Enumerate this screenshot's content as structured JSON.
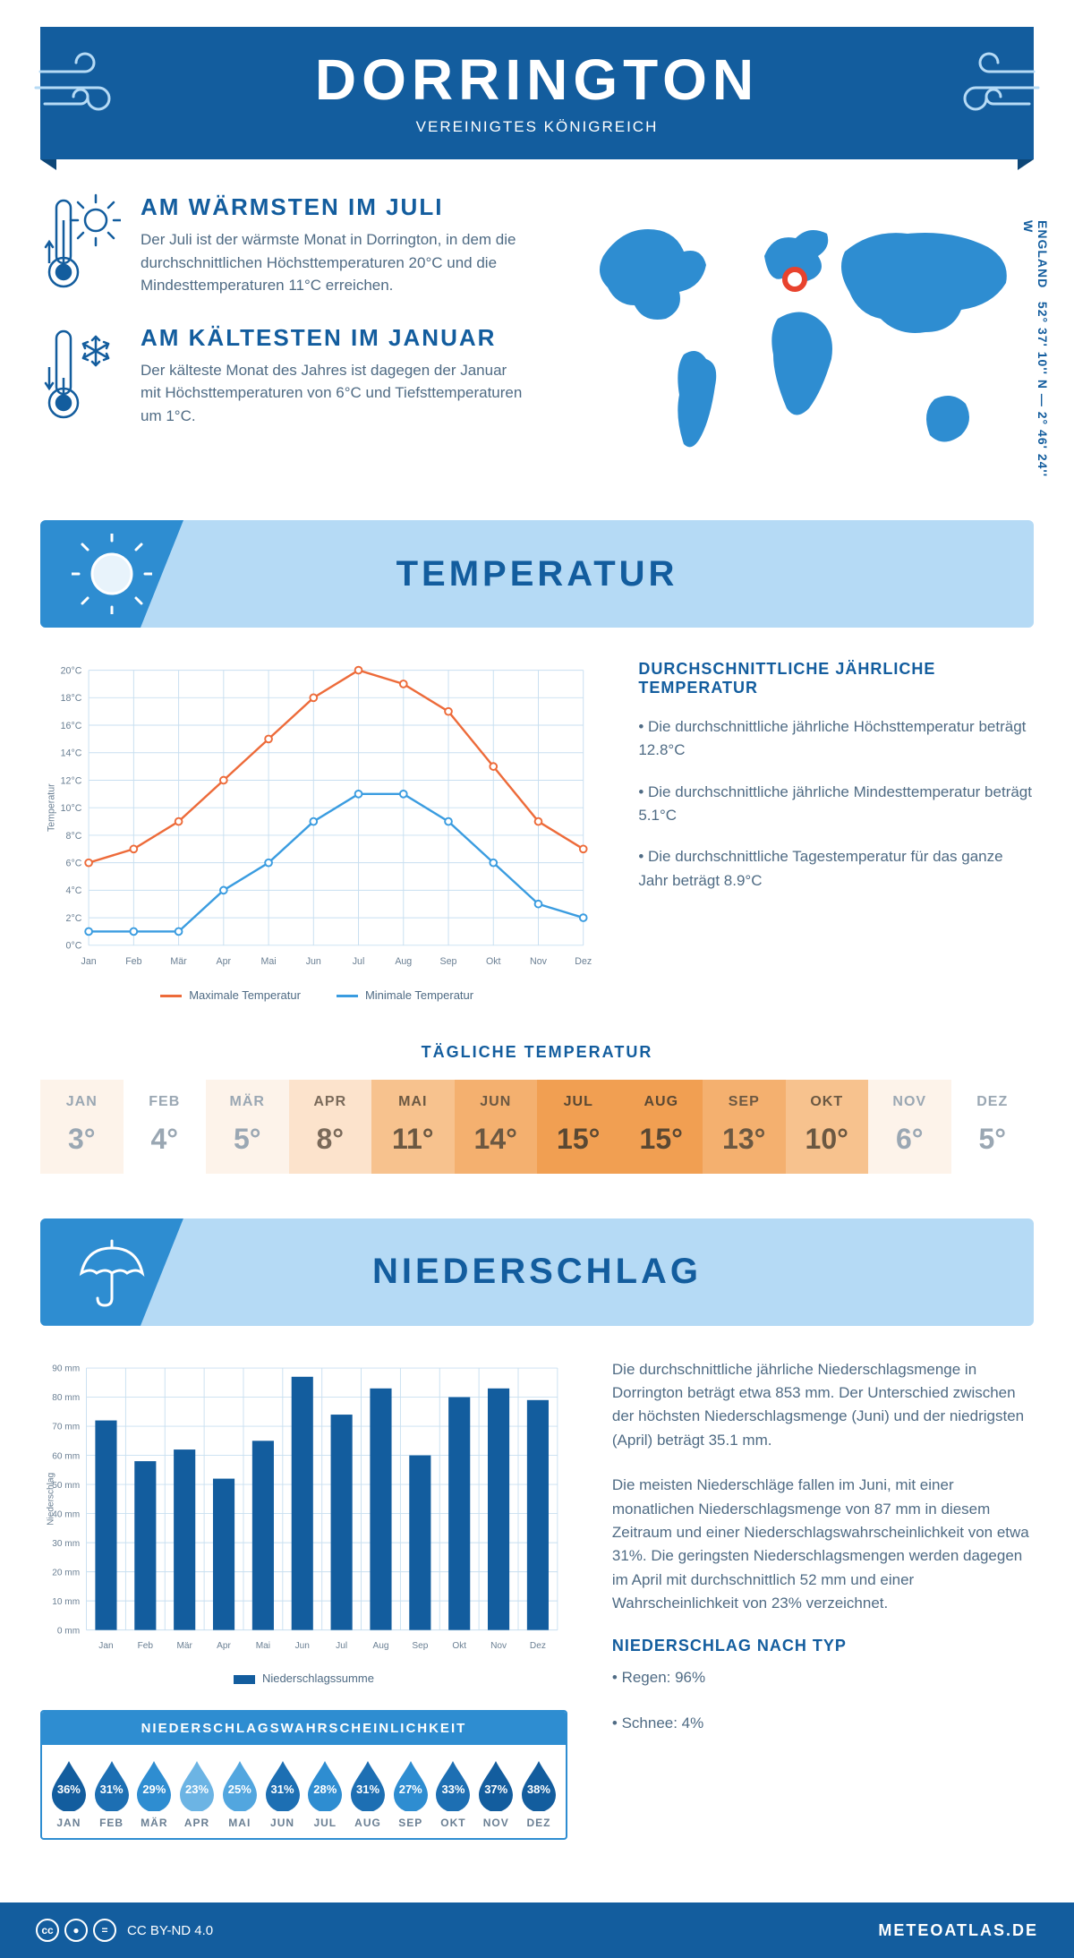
{
  "header": {
    "title": "DORRINGTON",
    "subtitle": "VEREINIGTES KÖNIGREICH"
  },
  "coords": "52° 37' 10'' N — 2° 46' 24'' W",
  "coords_region": "ENGLAND",
  "facts": {
    "warm": {
      "title": "AM WÄRMSTEN IM JULI",
      "text": "Der Juli ist der wärmste Monat in Dorrington, in dem die durchschnittlichen Höchsttemperaturen 20°C und die Mindesttemperaturen 11°C erreichen."
    },
    "cold": {
      "title": "AM KÄLTESTEN IM JANUAR",
      "text": "Der kälteste Monat des Jahres ist dagegen der Januar mit Höchsttemperaturen von 6°C und Tiefsttemperaturen um 1°C."
    }
  },
  "colors": {
    "brand": "#135d9e",
    "accent": "#2e8dd1",
    "light": "#b5daf5",
    "max_line": "#ed6b3a",
    "min_line": "#3a9ce0",
    "grid": "#c8dff0",
    "text": "#4f6b84",
    "bar": "#135d9e"
  },
  "months": [
    "Jan",
    "Feb",
    "Mär",
    "Apr",
    "Mai",
    "Jun",
    "Jul",
    "Aug",
    "Sep",
    "Okt",
    "Nov",
    "Dez"
  ],
  "months_upper": [
    "JAN",
    "FEB",
    "MÄR",
    "APR",
    "MAI",
    "JUN",
    "JUL",
    "AUG",
    "SEP",
    "OKT",
    "NOV",
    "DEZ"
  ],
  "temp_section": {
    "title": "TEMPERATUR"
  },
  "temp_chart": {
    "type": "line",
    "ylim": [
      0,
      20
    ],
    "ytick_step": 2,
    "y_unit": "°C",
    "y_axis_title": "Temperatur",
    "series": [
      {
        "name": "Maximale Temperatur",
        "color": "#ed6b3a",
        "values": [
          6,
          7,
          9,
          12,
          15,
          18,
          20,
          19,
          17,
          13,
          9,
          7
        ]
      },
      {
        "name": "Minimale Temperatur",
        "color": "#3a9ce0",
        "values": [
          1,
          1,
          1,
          4,
          6,
          9,
          11,
          11,
          9,
          6,
          3,
          2
        ]
      }
    ]
  },
  "temp_side": {
    "heading": "DURCHSCHNITTLICHE JÄHRLICHE TEMPERATUR",
    "bullets": [
      "• Die durchschnittliche jährliche Höchsttemperatur beträgt 12.8°C",
      "• Die durchschnittliche jährliche Mindesttemperatur beträgt 5.1°C",
      "• Die durchschnittliche Tagestemperatur für das ganze Jahr beträgt 8.9°C"
    ]
  },
  "daily": {
    "title": "TÄGLICHE TEMPERATUR",
    "values": [
      "3°",
      "4°",
      "5°",
      "8°",
      "11°",
      "14°",
      "15°",
      "15°",
      "13°",
      "10°",
      "6°",
      "5°"
    ],
    "bg": [
      "#fdf3ea",
      "#ffffff",
      "#fdf3ea",
      "#fce3cc",
      "#f7c28e",
      "#f4b06f",
      "#f19f52",
      "#f19f52",
      "#f4b06f",
      "#f7c28e",
      "#fdf3ea",
      "#ffffff"
    ],
    "fg": [
      "#9aa7b3",
      "#9aa7b3",
      "#9aa7b3",
      "#7a6a5a",
      "#6b5842",
      "#6b5842",
      "#5a4833",
      "#5a4833",
      "#6b5842",
      "#6b5842",
      "#9aa7b3",
      "#9aa7b3"
    ]
  },
  "precip_section": {
    "title": "NIEDERSCHLAG"
  },
  "precip_chart": {
    "type": "bar",
    "ylim": [
      0,
      90
    ],
    "ytick_step": 10,
    "y_unit": " mm",
    "y_axis_title": "Niederschlag",
    "legend": "Niederschlagssumme",
    "values": [
      72,
      58,
      62,
      52,
      65,
      87,
      74,
      83,
      60,
      80,
      83,
      79
    ],
    "bar_color": "#135d9e"
  },
  "precip_text": {
    "p1": "Die durchschnittliche jährliche Niederschlagsmenge in Dorrington beträgt etwa 853 mm. Der Unterschied zwischen der höchsten Niederschlagsmenge (Juni) und der niedrigsten (April) beträgt 35.1 mm.",
    "p2": "Die meisten Niederschläge fallen im Juni, mit einer monatlichen Niederschlagsmenge von 87 mm in diesem Zeitraum und einer Niederschlagswahrscheinlichkeit von etwa 31%. Die geringsten Niederschlagsmengen werden dagegen im April mit durchschnittlich 52 mm und einer Wahrscheinlichkeit von 23% verzeichnet.",
    "type_heading": "NIEDERSCHLAG NACH TYP",
    "type_bullets": [
      "• Regen: 96%",
      "• Schnee: 4%"
    ]
  },
  "prob": {
    "title": "NIEDERSCHLAGSWAHRSCHEINLICHKEIT",
    "values": [
      "36%",
      "31%",
      "29%",
      "23%",
      "25%",
      "31%",
      "28%",
      "31%",
      "27%",
      "33%",
      "37%",
      "38%"
    ],
    "colors": [
      "#135d9e",
      "#1d6fb3",
      "#2e8dd1",
      "#6cb4e4",
      "#52a6df",
      "#1d6fb3",
      "#2e8dd1",
      "#1d6fb3",
      "#2e8dd1",
      "#1d6fb3",
      "#135d9e",
      "#135d9e"
    ]
  },
  "footer": {
    "license": "CC BY-ND 4.0",
    "site": "METEOATLAS.DE"
  }
}
